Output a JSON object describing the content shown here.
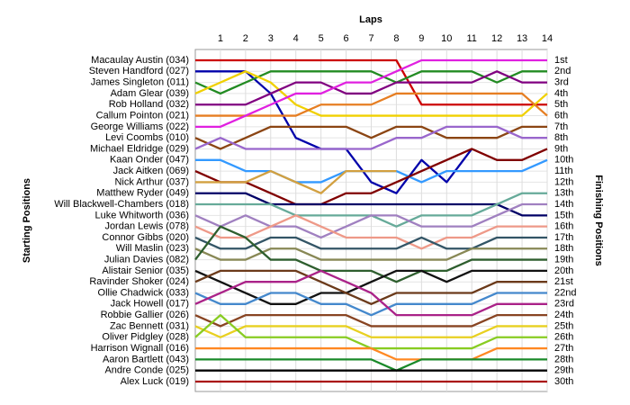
{
  "chart_data": {
    "type": "lap",
    "x_label": "Laps",
    "y_label": "Starting Positions",
    "y2_label": "Finishing Positions",
    "x": [
      0,
      1,
      2,
      3,
      4,
      5,
      6,
      7,
      8,
      9,
      10,
      11,
      12,
      13,
      14
    ],
    "xlim": [
      0,
      14
    ],
    "xticks": [
      1,
      2,
      3,
      4,
      5,
      6,
      7,
      8,
      9,
      10,
      11,
      12,
      13,
      14
    ],
    "ylim": [
      1,
      30
    ],
    "grid": true,
    "finishing_positions": [
      "1st",
      "2nd",
      "3rd",
      "4th",
      "5th",
      "6th",
      "7th",
      "8th",
      "9th",
      "10th",
      "11th",
      "12th",
      "13th",
      "14th",
      "15th",
      "16th",
      "17th",
      "18th",
      "19th",
      "20th",
      "21st",
      "22nd",
      "23rd",
      "24th",
      "25th",
      "26th",
      "27th",
      "28th",
      "29th",
      "30th"
    ],
    "series": [
      {
        "name": "Macaulay Austin (034)",
        "color": "#cc0000",
        "values": [
          1,
          1,
          1,
          1,
          1,
          1,
          1,
          1,
          1,
          5,
          5,
          5,
          5,
          5,
          5
        ]
      },
      {
        "name": "Steven Handford (027)",
        "color": "#0000aa",
        "values": [
          2,
          2,
          2,
          4,
          8,
          9,
          9,
          12,
          13,
          10,
          12,
          9,
          null,
          null,
          null
        ]
      },
      {
        "name": "James Singleton (011)",
        "color": "#228b22",
        "values": [
          3,
          4,
          3,
          2,
          2,
          2,
          2,
          2,
          3,
          2,
          2,
          2,
          3,
          2,
          2
        ]
      },
      {
        "name": "Adam Glear (039)",
        "color": "#f0d000",
        "values": [
          4,
          3,
          2,
          3,
          5,
          6,
          6,
          6,
          6,
          6,
          6,
          6,
          6,
          6,
          4
        ]
      },
      {
        "name": "Rob Holland (032)",
        "color": "#800080",
        "values": [
          5,
          5,
          5,
          4,
          3,
          3,
          4,
          4,
          3,
          3,
          3,
          3,
          2,
          3,
          3
        ]
      },
      {
        "name": "Callum Pointon (021)",
        "color": "#e67e22",
        "values": [
          6,
          6,
          6,
          6,
          6,
          5,
          5,
          5,
          4,
          4,
          4,
          4,
          4,
          4,
          6
        ]
      },
      {
        "name": "George Williams (022)",
        "color": "#e020e0",
        "values": [
          7,
          7,
          6,
          5,
          4,
          4,
          3,
          3,
          2,
          1,
          1,
          1,
          1,
          1,
          1
        ]
      },
      {
        "name": "Levi Coombs (010)",
        "color": "#8b4513",
        "values": [
          8,
          9,
          8,
          7,
          7,
          7,
          7,
          8,
          7,
          7,
          8,
          8,
          8,
          7,
          7
        ]
      },
      {
        "name": "Michael Eldridge (029)",
        "color": "#9966cc",
        "values": [
          9,
          8,
          9,
          9,
          9,
          9,
          9,
          9,
          8,
          8,
          7,
          7,
          7,
          8,
          8
        ]
      },
      {
        "name": "Kaan Onder (047)",
        "color": "#3399ff",
        "values": [
          10,
          10,
          11,
          11,
          12,
          12,
          11,
          11,
          11,
          12,
          11,
          11,
          11,
          11,
          10
        ]
      },
      {
        "name": "Jack Aitken (069)",
        "color": "#800000",
        "values": [
          11,
          12,
          12,
          13,
          14,
          14,
          13,
          13,
          12,
          11,
          10,
          9,
          10,
          10,
          9
        ]
      },
      {
        "name": "Nick Arthur (037)",
        "color": "#d2a040",
        "values": [
          12,
          12,
          12,
          11,
          12,
          13,
          11,
          11,
          11,
          null,
          null,
          null,
          null,
          null,
          null
        ]
      },
      {
        "name": "Matthew Ryder (049)",
        "color": "#000066",
        "values": [
          13,
          13,
          13,
          14,
          14,
          14,
          14,
          14,
          14,
          14,
          14,
          14,
          14,
          15,
          15
        ]
      },
      {
        "name": "Will Blackwell-Chambers (018)",
        "color": "#66aa99",
        "values": [
          14,
          14,
          14,
          14,
          15,
          15,
          15,
          15,
          16,
          15,
          15,
          15,
          14,
          13,
          13
        ]
      },
      {
        "name": "Luke Whitworth (036)",
        "color": "#a080c0",
        "values": [
          15,
          16,
          15,
          16,
          16,
          17,
          16,
          15,
          15,
          16,
          16,
          16,
          15,
          14,
          14
        ]
      },
      {
        "name": "Jordan Lewis (078)",
        "color": "#ee9988",
        "values": [
          16,
          17,
          17,
          16,
          15,
          16,
          17,
          17,
          17,
          18,
          17,
          17,
          16,
          16,
          16
        ]
      },
      {
        "name": "Connor Gibbs (020)",
        "color": "#335566",
        "values": [
          17,
          18,
          18,
          17,
          17,
          18,
          18,
          18,
          18,
          17,
          18,
          18,
          17,
          17,
          17
        ]
      },
      {
        "name": "Will Maslin (023)",
        "color": "#888855",
        "values": [
          18,
          19,
          19,
          18,
          18,
          19,
          19,
          19,
          19,
          19,
          19,
          18,
          18,
          18,
          18
        ]
      },
      {
        "name": "Julian Davies (082)",
        "color": "#2e5e2e",
        "values": [
          19,
          16,
          17,
          19,
          19,
          20,
          20,
          20,
          21,
          20,
          20,
          19,
          19,
          19,
          19
        ]
      },
      {
        "name": "Alistair Senior (035)",
        "color": "#111111",
        "values": [
          20,
          21,
          22,
          23,
          23,
          22,
          22,
          21,
          20,
          20,
          21,
          20,
          20,
          20,
          20
        ]
      },
      {
        "name": "Ravinder Shoker (024)",
        "color": "#6b3a1a",
        "values": [
          21,
          20,
          20,
          20,
          20,
          21,
          22,
          23,
          22,
          22,
          22,
          22,
          21,
          21,
          21
        ]
      },
      {
        "name": "Ollie Chadwick (033)",
        "color": "#4488cc",
        "values": [
          22,
          23,
          23,
          22,
          22,
          23,
          23,
          24,
          23,
          23,
          23,
          23,
          22,
          22,
          22
        ]
      },
      {
        "name": "Jack Howell (017)",
        "color": "#aa2288",
        "values": [
          23,
          22,
          21,
          21,
          21,
          20,
          21,
          22,
          24,
          24,
          24,
          24,
          23,
          23,
          23
        ]
      },
      {
        "name": "Robbie Gallier (026)",
        "color": "#884422",
        "values": [
          24,
          25,
          24,
          24,
          24,
          24,
          24,
          25,
          25,
          25,
          25,
          25,
          24,
          24,
          24
        ]
      },
      {
        "name": "Zac Bennett (031)",
        "color": "#e8d020",
        "values": [
          25,
          26,
          25,
          25,
          25,
          25,
          25,
          26,
          26,
          26,
          26,
          26,
          25,
          25,
          25
        ]
      },
      {
        "name": "Oliver Pidgley (028)",
        "color": "#88cc22",
        "values": [
          26,
          24,
          26,
          26,
          26,
          26,
          26,
          27,
          27,
          27,
          27,
          27,
          26,
          26,
          26
        ]
      },
      {
        "name": "Harrison Wignall (016)",
        "color": "#ff8822",
        "values": [
          27,
          27,
          27,
          27,
          27,
          27,
          27,
          27,
          28,
          28,
          28,
          28,
          27,
          27,
          27
        ]
      },
      {
        "name": "Aaron Bartlett (043)",
        "color": "#1a8a2a",
        "values": [
          28,
          28,
          28,
          28,
          28,
          28,
          28,
          28,
          29,
          28,
          28,
          28,
          28,
          28,
          28
        ]
      },
      {
        "name": "Andre Conde (025)",
        "color": "#000000",
        "values": [
          29,
          29,
          29,
          29,
          29,
          29,
          29,
          29,
          29,
          29,
          29,
          29,
          29,
          29,
          29
        ]
      },
      {
        "name": "Alex Luck (019)",
        "color": "#aa1111",
        "values": [
          30,
          30,
          30,
          30,
          30,
          30,
          30,
          30,
          30,
          30,
          30,
          30,
          30,
          30,
          30
        ]
      }
    ]
  }
}
